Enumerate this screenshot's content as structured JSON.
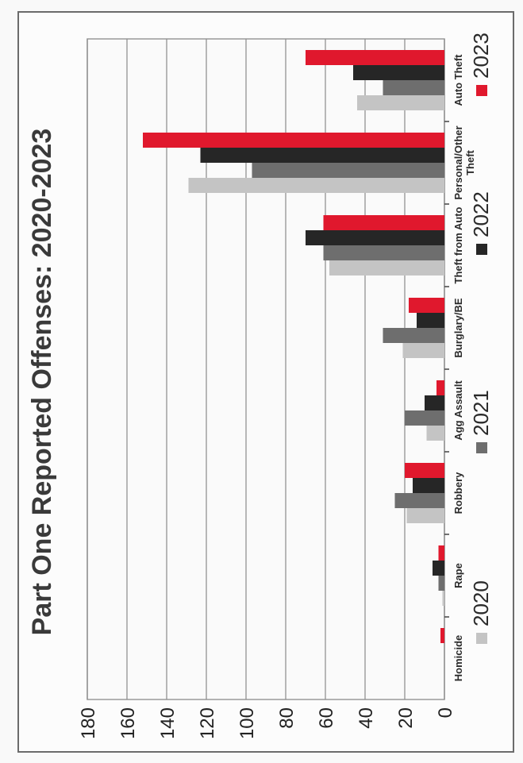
{
  "chart_data": {
    "type": "bar",
    "orientation": "rotated-90-clockwise",
    "title": "Part One Reported Offenses: 2020-2023",
    "categories": [
      "Homicide",
      "Rape",
      "Robbery",
      "Agg Assault",
      "Burglary/BE",
      "Theft from Auto",
      "Personal/Other Theft",
      "Auto Theft"
    ],
    "series": [
      {
        "name": "2020",
        "color": "#c4c4c4",
        "values": [
          0,
          1,
          19,
          9,
          21,
          58,
          129,
          44
        ]
      },
      {
        "name": "2021",
        "color": "#6e6e6e",
        "values": [
          0,
          3,
          25,
          20,
          31,
          61,
          97,
          31
        ]
      },
      {
        "name": "2022",
        "color": "#262626",
        "values": [
          0,
          6,
          16,
          10,
          14,
          70,
          123,
          46
        ]
      },
      {
        "name": "2023",
        "color": "#e0182d",
        "values": [
          2,
          3,
          20,
          4,
          18,
          61,
          152,
          70
        ]
      }
    ],
    "ylim": [
      0,
      180
    ],
    "yticks": [
      0,
      20,
      40,
      60,
      80,
      100,
      120,
      140,
      160,
      180
    ],
    "grid": true,
    "legend": "bottom"
  }
}
